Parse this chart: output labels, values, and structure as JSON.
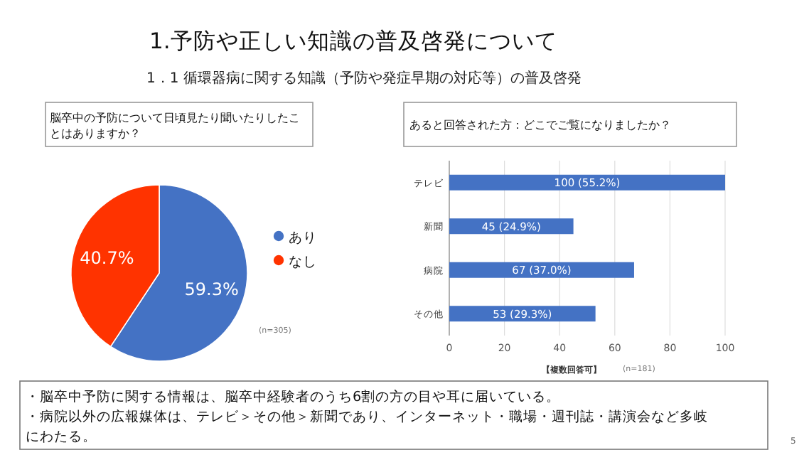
{
  "chart_data": [
    {
      "type": "other",
      "title": "1.予防や正しい知識の普及啓発について",
      "subtitle": "1．1 循環器病に関する知識（予防や発症早期の対応等）の普及啓発"
    },
    {
      "type": "pie",
      "title": "脳卒中の予防について日頃見たり聞いたりしたことはありますか？",
      "categories": [
        "あり",
        "なし"
      ],
      "values": [
        59.3,
        40.7
      ],
      "colors": [
        "#4472c4",
        "#ff3300"
      ],
      "value_labels": [
        "59.3%",
        "40.7%"
      ],
      "legend": "right",
      "annotations": [
        "(n=305)"
      ]
    },
    {
      "type": "bar",
      "orientation": "horizontal",
      "title": "あると回答された方：どこでご覧になりましたか？",
      "categories": [
        "テレビ",
        "新聞",
        "病院",
        "その他"
      ],
      "values": [
        100,
        45,
        67,
        53
      ],
      "value_labels": [
        "100 (55.2%)",
        "45 (24.9%)",
        "67 (37.0%)",
        "53 (29.3%)"
      ],
      "color": "#4472c4",
      "xlim": [
        0,
        100
      ],
      "xticks": [
        0,
        20,
        40,
        60,
        80,
        100
      ],
      "grid": "x",
      "xlabel": "【複数回答可】",
      "annotations": [
        "(n=181)"
      ]
    },
    {
      "type": "other",
      "annotations": [
        "・脳卒中予防に関する情報は、脳卒中経験者のうち6割の方の目や耳に届いている。",
        "・病院以外の広報媒体は、テレビ＞その他＞新聞であり、インターネット・職場・週刊誌・講演会など多岐にわたる。",
        "5"
      ]
    }
  ]
}
